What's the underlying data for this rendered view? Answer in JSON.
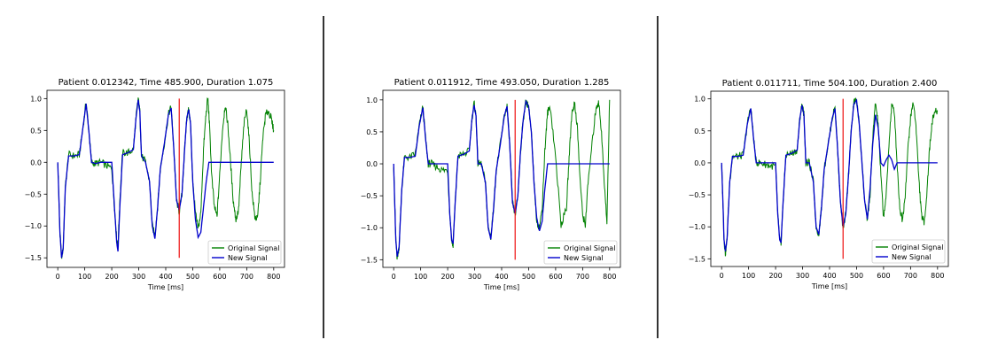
{
  "colors": {
    "original": "#008000",
    "new": "#0000cc",
    "marker": "#ee1111"
  },
  "chart_data": [
    {
      "type": "line",
      "title": "Patient  0.012342, Time  485.900, Duration  1.075",
      "xlabel": "Time [ms]",
      "ylabel": "",
      "xlim": [
        -40,
        840
      ],
      "ylim": [
        -1.65,
        1.13
      ],
      "x_ticks": [
        0,
        100,
        200,
        300,
        400,
        500,
        600,
        700,
        800
      ],
      "y_ticks": [
        -1.5,
        -1.0,
        -0.5,
        0.0,
        0.5,
        1.0
      ],
      "y_tick_labels": [
        "−1.5",
        "−1.0",
        "−0.5",
        "0.0",
        "0.5",
        "1.0"
      ],
      "marker_x": 450,
      "marker_range": [
        -1.5,
        1.0
      ],
      "legend": "lower-right",
      "series": [
        {
          "name": "Original Signal",
          "x": [
            0,
            3,
            8,
            14,
            20,
            28,
            40,
            60,
            80,
            95,
            105,
            115,
            125,
            140,
            160,
            180,
            200,
            210,
            218,
            223,
            230,
            240,
            260,
            280,
            290,
            298,
            304,
            310,
            325,
            340,
            350,
            360,
            370,
            380,
            395,
            410,
            420,
            430,
            440,
            450,
            460,
            470,
            478,
            485,
            492,
            500,
            510,
            520,
            530,
            540,
            548,
            556,
            562,
            570,
            580,
            590,
            600,
            610,
            620,
            630,
            640,
            650,
            660,
            670,
            680,
            690,
            700,
            710,
            720,
            730,
            740,
            750,
            760,
            770,
            780,
            790,
            800
          ],
          "y": [
            0.0,
            -0.4,
            -1.1,
            -1.5,
            -1.35,
            -0.4,
            0.12,
            0.1,
            0.12,
            0.6,
            0.95,
            0.5,
            0.0,
            -0.02,
            0.0,
            -0.05,
            -0.1,
            -0.7,
            -1.2,
            -1.3,
            -0.6,
            0.15,
            0.15,
            0.2,
            0.7,
            1.0,
            0.8,
            0.1,
            0.0,
            -0.3,
            -1.0,
            -1.15,
            -0.7,
            -0.1,
            0.3,
            0.75,
            0.87,
            0.2,
            -0.6,
            -0.78,
            -0.5,
            0.2,
            0.7,
            0.83,
            0.6,
            -0.3,
            -0.8,
            -1.05,
            -0.8,
            0.2,
            0.7,
            1.02,
            0.6,
            -0.2,
            -0.7,
            -0.85,
            -0.2,
            0.5,
            0.9,
            0.6,
            0.0,
            -0.6,
            -0.9,
            -0.75,
            0.0,
            0.6,
            0.85,
            0.3,
            -0.5,
            -0.85,
            -0.9,
            -0.3,
            0.4,
            0.75,
            0.8,
            0.7,
            0.5
          ]
        },
        {
          "name": "New Signal",
          "x": [
            0,
            3,
            8,
            14,
            20,
            28,
            40,
            60,
            80,
            95,
            105,
            115,
            125,
            140,
            160,
            180,
            200,
            210,
            218,
            223,
            230,
            240,
            260,
            280,
            290,
            298,
            304,
            310,
            325,
            340,
            350,
            360,
            370,
            380,
            395,
            410,
            420,
            430,
            440,
            450,
            460,
            470,
            478,
            485,
            492,
            500,
            510,
            520,
            530,
            540,
            550,
            560,
            600,
            640,
            680,
            720,
            760,
            800
          ],
          "y": [
            0.0,
            -0.4,
            -1.1,
            -1.5,
            -1.35,
            -0.4,
            0.1,
            0.1,
            0.12,
            0.6,
            0.92,
            0.5,
            0.0,
            -0.02,
            0.0,
            0.0,
            0.0,
            -0.7,
            -1.25,
            -1.4,
            -0.7,
            0.12,
            0.15,
            0.2,
            0.7,
            0.98,
            0.8,
            0.1,
            0.0,
            -0.3,
            -1.0,
            -1.2,
            -0.7,
            -0.1,
            0.3,
            0.75,
            0.85,
            0.2,
            -0.6,
            -0.75,
            -0.5,
            0.2,
            0.7,
            0.83,
            0.6,
            -0.3,
            -0.9,
            -1.18,
            -1.1,
            -0.7,
            -0.3,
            0.0,
            0.0,
            0.0,
            0.0,
            0.0,
            0.0,
            0.0
          ]
        }
      ]
    },
    {
      "type": "line",
      "title": "Patient  0.011912, Time  493.050, Duration  1.285",
      "xlabel": "Time [ms]",
      "ylabel": "",
      "xlim": [
        -40,
        840
      ],
      "ylim": [
        -1.62,
        1.15
      ],
      "x_ticks": [
        0,
        100,
        200,
        300,
        400,
        500,
        600,
        700,
        800
      ],
      "y_ticks": [
        -1.5,
        -1.0,
        -0.5,
        0.0,
        0.5,
        1.0
      ],
      "y_tick_labels": [
        "−1.5",
        "−1.0",
        "−0.5",
        "0.0",
        "0.5",
        "1.0"
      ],
      "marker_x": 450,
      "marker_range": [
        -1.5,
        1.0
      ],
      "legend": "lower-right",
      "series": [
        {
          "name": "Original Signal",
          "x": [
            0,
            3,
            8,
            13,
            20,
            30,
            40,
            60,
            80,
            95,
            108,
            118,
            128,
            140,
            160,
            180,
            200,
            208,
            215,
            220,
            228,
            238,
            260,
            280,
            290,
            298,
            305,
            312,
            325,
            340,
            350,
            360,
            370,
            380,
            395,
            410,
            420,
            430,
            440,
            450,
            460,
            470,
            480,
            490,
            500,
            510,
            520,
            530,
            540,
            550,
            560,
            570,
            580,
            600,
            620,
            640,
            650,
            660,
            670,
            680,
            690,
            700,
            710,
            720,
            740,
            750,
            760,
            770,
            780,
            790,
            800
          ],
          "y": [
            0.0,
            -0.5,
            -1.2,
            -1.48,
            -1.3,
            -0.4,
            0.1,
            0.1,
            0.15,
            0.6,
            0.9,
            0.4,
            0.0,
            0.0,
            -0.05,
            -0.1,
            -0.1,
            -0.8,
            -1.2,
            -1.28,
            -0.6,
            0.12,
            0.15,
            0.2,
            0.7,
            0.95,
            0.75,
            0.0,
            0.0,
            -0.3,
            -1.0,
            -1.15,
            -0.7,
            -0.1,
            0.3,
            0.75,
            0.9,
            0.3,
            -0.6,
            -0.8,
            -0.5,
            0.2,
            0.7,
            0.98,
            0.9,
            0.5,
            -0.3,
            -0.9,
            -1.0,
            -0.7,
            0.2,
            0.8,
            0.9,
            0.1,
            -0.95,
            -0.7,
            0.1,
            0.8,
            0.95,
            0.6,
            -0.2,
            -0.8,
            -0.95,
            -0.3,
            0.5,
            0.9,
            0.95,
            0.5,
            -0.3,
            -0.9,
            1.0
          ]
        },
        {
          "name": "New Signal",
          "x": [
            0,
            3,
            8,
            13,
            20,
            30,
            40,
            60,
            80,
            95,
            108,
            118,
            128,
            140,
            160,
            180,
            200,
            208,
            215,
            220,
            228,
            238,
            260,
            280,
            290,
            298,
            305,
            312,
            325,
            340,
            350,
            360,
            370,
            380,
            395,
            410,
            420,
            430,
            440,
            450,
            460,
            470,
            480,
            490,
            500,
            510,
            520,
            530,
            540,
            550,
            560,
            570,
            600,
            640,
            680,
            720,
            760,
            800
          ],
          "y": [
            0.0,
            -0.5,
            -1.2,
            -1.45,
            -1.3,
            -0.4,
            0.1,
            0.1,
            0.12,
            0.6,
            0.88,
            0.4,
            0.0,
            0.0,
            0.0,
            0.0,
            0.0,
            -0.8,
            -1.2,
            -1.25,
            -0.6,
            0.12,
            0.15,
            0.2,
            0.7,
            0.92,
            0.75,
            0.0,
            0.0,
            -0.3,
            -1.0,
            -1.18,
            -0.7,
            -0.1,
            0.3,
            0.75,
            0.9,
            0.3,
            -0.6,
            -0.78,
            -0.5,
            0.2,
            0.7,
            0.98,
            0.9,
            0.5,
            -0.3,
            -0.85,
            -1.05,
            -0.9,
            -0.4,
            0.0,
            0.0,
            0.0,
            0.0,
            0.0,
            0.0,
            0.0
          ]
        }
      ]
    },
    {
      "type": "line",
      "title": "Patient  0.011711, Time  504.100, Duration  2.400",
      "xlabel": "Time [ms]",
      "ylabel": "",
      "xlim": [
        -40,
        840
      ],
      "ylim": [
        -1.62,
        1.12
      ],
      "x_ticks": [
        0,
        100,
        200,
        300,
        400,
        500,
        600,
        700,
        800
      ],
      "y_ticks": [
        -1.5,
        -1.0,
        -0.5,
        0.0,
        0.5,
        1.0
      ],
      "y_tick_labels": [
        "−1.5",
        "−1.0",
        "−0.5",
        "0.0",
        "0.5",
        "1.0"
      ],
      "marker_x": 450,
      "marker_range": [
        -1.5,
        1.0
      ],
      "legend": "lower-right",
      "series": [
        {
          "name": "Original Signal",
          "x": [
            0,
            4,
            9,
            14,
            20,
            30,
            40,
            60,
            80,
            95,
            108,
            118,
            128,
            140,
            160,
            180,
            200,
            208,
            215,
            220,
            228,
            238,
            260,
            280,
            290,
            298,
            305,
            312,
            325,
            340,
            350,
            360,
            370,
            380,
            395,
            410,
            420,
            430,
            440,
            450,
            460,
            470,
            480,
            490,
            500,
            510,
            520,
            530,
            540,
            550,
            560,
            570,
            580,
            590,
            600,
            610,
            620,
            630,
            640,
            650,
            660,
            670,
            680,
            690,
            700,
            710,
            720,
            730,
            740,
            750,
            760,
            770,
            780,
            790,
            800
          ],
          "y": [
            0.0,
            -0.5,
            -1.2,
            -1.42,
            -1.2,
            -0.3,
            0.1,
            0.1,
            0.12,
            0.6,
            0.88,
            0.4,
            0.0,
            0.0,
            -0.02,
            -0.05,
            -0.05,
            -0.8,
            -1.2,
            -1.27,
            -0.6,
            0.12,
            0.15,
            0.2,
            0.7,
            0.92,
            0.75,
            0.0,
            0.0,
            -0.3,
            -1.0,
            -1.12,
            -0.7,
            -0.1,
            0.3,
            0.7,
            0.88,
            0.2,
            -0.6,
            -1.05,
            -0.8,
            -0.2,
            0.5,
            0.95,
            0.98,
            0.6,
            0.0,
            -0.6,
            -0.9,
            -0.5,
            0.4,
            0.95,
            0.6,
            -0.2,
            -0.85,
            -0.5,
            0.3,
            0.9,
            0.8,
            0.0,
            -0.7,
            -0.9,
            -0.5,
            0.2,
            0.7,
            0.95,
            0.6,
            -0.2,
            -0.8,
            -0.95,
            -0.5,
            0.2,
            0.65,
            0.8,
            0.8
          ]
        },
        {
          "name": "New Signal",
          "x": [
            0,
            4,
            9,
            14,
            20,
            30,
            40,
            60,
            80,
            95,
            108,
            118,
            128,
            140,
            160,
            180,
            200,
            208,
            215,
            220,
            228,
            238,
            260,
            280,
            290,
            298,
            305,
            312,
            325,
            340,
            350,
            360,
            370,
            380,
            395,
            410,
            420,
            430,
            440,
            450,
            460,
            470,
            480,
            490,
            500,
            510,
            520,
            530,
            540,
            550,
            560,
            570,
            580,
            590,
            600,
            610,
            620,
            630,
            640,
            650,
            660,
            700,
            740,
            770,
            800
          ],
          "y": [
            0.0,
            -0.5,
            -1.2,
            -1.38,
            -1.2,
            -0.3,
            0.1,
            0.1,
            0.12,
            0.6,
            0.85,
            0.4,
            0.0,
            0.0,
            0.0,
            0.0,
            0.0,
            -0.8,
            -1.2,
            -1.25,
            -0.6,
            0.12,
            0.15,
            0.2,
            0.7,
            0.9,
            0.75,
            0.0,
            0.0,
            -0.3,
            -1.0,
            -1.12,
            -0.7,
            -0.1,
            0.3,
            0.7,
            0.85,
            0.2,
            -0.6,
            -1.0,
            -0.8,
            -0.2,
            0.5,
            0.92,
            0.98,
            0.6,
            0.0,
            -0.6,
            -0.88,
            -0.4,
            0.3,
            0.75,
            0.55,
            0.0,
            -0.05,
            0.05,
            0.12,
            0.05,
            -0.1,
            0.0,
            0.0,
            0.0,
            0.0,
            0.0,
            0.0
          ]
        }
      ]
    }
  ]
}
